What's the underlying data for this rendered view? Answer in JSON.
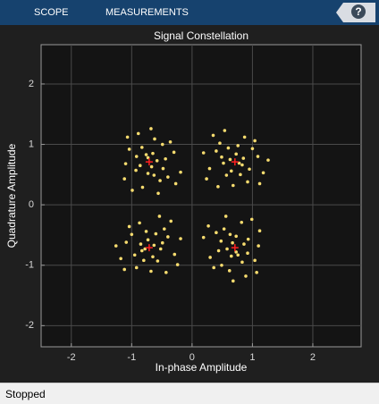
{
  "toolbar": {
    "tabs": [
      "SCOPE",
      "MEASUREMENTS"
    ],
    "help": "?"
  },
  "status": "Stopped",
  "chart_data": {
    "type": "scatter",
    "title": "Signal Constellation",
    "x_label": "In-phase Amplitude",
    "y_label": "Quadrature Amplitude",
    "xlim": [
      -2.5,
      2.8
    ],
    "ylim": [
      -2.35,
      2.65
    ],
    "xticks": [
      -2,
      -1,
      0,
      1,
      2
    ],
    "yticks": [
      -2,
      -1,
      0,
      1,
      2
    ],
    "grid": true,
    "series": [
      {
        "color": "#f7dc6f",
        "marker": "dot",
        "x": [
          0.83,
          0.4,
          0.76,
          0.57,
          1.09,
          0.63,
          0.92,
          0.29,
          0.87,
          0.46,
          1.0,
          0.68,
          1.18,
          0.52,
          0.73,
          0.35,
          0.95,
          0.6,
          1.04,
          0.24,
          0.8,
          0.49,
          1.26,
          0.65,
          0.85,
          0.43,
          1.12,
          0.54,
          0.78,
          0.19,
          -0.76,
          -0.53,
          -0.44,
          -0.93,
          -0.62,
          -0.67,
          -1.04,
          -0.82,
          -0.3,
          -0.4,
          -0.49,
          -1.1,
          -0.89,
          -0.73,
          -0.58,
          -0.27,
          -0.83,
          -0.48,
          -0.36,
          -0.99,
          -0.92,
          -0.63,
          -0.68,
          -0.86,
          -0.65,
          -1.12,
          -1.07,
          -0.19,
          -0.73,
          -0.56,
          -0.83,
          -0.4,
          -0.76,
          -0.57,
          -1.09,
          -0.63,
          -0.92,
          -0.29,
          -0.87,
          -0.46,
          -1.0,
          -0.68,
          -1.18,
          -0.52,
          -0.73,
          -0.35,
          -0.95,
          -0.6,
          -1.04,
          -0.24,
          -0.8,
          -0.49,
          -1.26,
          -0.65,
          -0.85,
          -0.43,
          -1.12,
          -0.54,
          -0.78,
          -0.19,
          0.76,
          0.53,
          0.44,
          0.93,
          0.62,
          0.67,
          1.04,
          0.82,
          0.3,
          0.4,
          0.49,
          1.1,
          0.89,
          0.73,
          0.58,
          0.27,
          0.83,
          0.48,
          0.36,
          0.99,
          0.92,
          0.63,
          0.68,
          0.86,
          0.65,
          1.12,
          1.07,
          0.19,
          0.73,
          0.56
        ],
        "values": [
          0.66,
          0.89,
          0.98,
          0.49,
          0.8,
          0.75,
          0.38,
          0.6,
          1.12,
          1.02,
          0.93,
          0.32,
          0.53,
          0.69,
          0.84,
          1.15,
          0.59,
          0.94,
          1.06,
          0.43,
          0.5,
          0.79,
          0.74,
          0.56,
          0.77,
          0.3,
          0.35,
          1.23,
          0.69,
          0.86,
          0.83,
          0.4,
          0.76,
          0.57,
          1.09,
          0.63,
          0.92,
          0.29,
          0.87,
          0.46,
          1.0,
          0.68,
          1.18,
          0.52,
          0.73,
          0.35,
          0.95,
          0.6,
          1.04,
          0.24,
          0.8,
          0.49,
          1.26,
          0.65,
          0.85,
          0.43,
          1.12,
          0.54,
          0.78,
          0.19,
          -0.76,
          -0.53,
          -0.44,
          -0.93,
          -0.62,
          -0.67,
          -1.04,
          -0.82,
          -0.3,
          -0.4,
          -0.49,
          -1.1,
          -0.89,
          -0.73,
          -0.58,
          -0.27,
          -0.83,
          -0.48,
          -0.36,
          -0.99,
          -0.92,
          -0.63,
          -0.68,
          -0.86,
          -0.65,
          -1.12,
          -1.07,
          -0.19,
          -0.73,
          -0.56,
          -0.83,
          -0.4,
          -0.76,
          -0.57,
          -1.09,
          -0.63,
          -0.92,
          -0.29,
          -0.87,
          -0.46,
          -1.0,
          -0.68,
          -1.18,
          -0.52,
          -0.73,
          -0.35,
          -0.95,
          -0.6,
          -1.04,
          -0.24,
          -0.8,
          -0.49,
          -1.26,
          -0.65,
          -0.85,
          -0.43,
          -1.12,
          -0.54,
          -0.78,
          -0.19
        ]
      },
      {
        "color": "#ff2020",
        "marker": "plus",
        "x": [
          0.71,
          -0.71,
          -0.71,
          0.71
        ],
        "values": [
          0.71,
          0.71,
          -0.71,
          -0.71
        ]
      }
    ]
  }
}
